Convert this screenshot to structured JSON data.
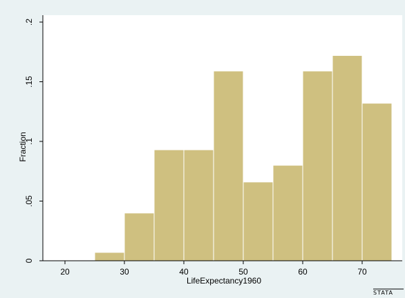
{
  "chart_data": {
    "type": "bar",
    "title": "",
    "xlabel": "LifeExpectancy1960",
    "ylabel": "Fraction",
    "xlim": [
      15,
      75
    ],
    "ylim": [
      0,
      0.2
    ],
    "x_ticks": [
      {
        "value": 20,
        "label": "20"
      },
      {
        "value": 30,
        "label": "30"
      },
      {
        "value": 40,
        "label": "40"
      },
      {
        "value": 50,
        "label": "50"
      },
      {
        "value": 60,
        "label": "60"
      },
      {
        "value": 70,
        "label": "70"
      }
    ],
    "y_ticks": [
      {
        "value": 0,
        "label": "0"
      },
      {
        "value": 0.05,
        "label": ".05"
      },
      {
        "value": 0.1,
        "label": ".1"
      },
      {
        "value": 0.15,
        "label": ".15"
      },
      {
        "value": 0.2,
        "label": ".2"
      }
    ],
    "bins": [
      {
        "start": 25,
        "end": 30,
        "value": 0.007
      },
      {
        "start": 30,
        "end": 35,
        "value": 0.04
      },
      {
        "start": 35,
        "end": 40,
        "value": 0.093
      },
      {
        "start": 40,
        "end": 45,
        "value": 0.093
      },
      {
        "start": 45,
        "end": 50,
        "value": 0.159
      },
      {
        "start": 50,
        "end": 55,
        "value": 0.066
      },
      {
        "start": 55,
        "end": 60,
        "value": 0.08
      },
      {
        "start": 60,
        "end": 65,
        "value": 0.159
      },
      {
        "start": 65,
        "end": 70,
        "value": 0.172
      },
      {
        "start": 70,
        "end": 75,
        "value": 0.132
      }
    ],
    "grid": false,
    "legend": "none",
    "colors": {
      "background": "#eaf2f3",
      "plot_area": "#ffffff",
      "bar_fill": "#cfc080",
      "bar_edge": "#ffffff",
      "axis": "#000000"
    }
  },
  "watermark": "stata"
}
